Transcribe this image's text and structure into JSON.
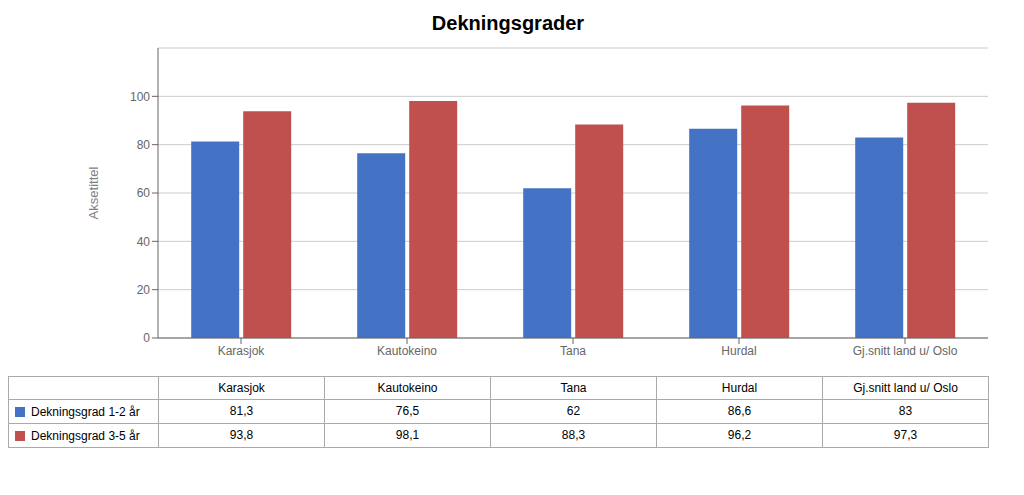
{
  "chart_data": {
    "type": "bar",
    "title": "Dekningsgrader",
    "y_label": "Aksetittel",
    "categories": [
      "Karasjok",
      "Kautokeino",
      "Tana",
      "Hurdal",
      "Gj.snitt land u/ Oslo"
    ],
    "series": [
      {
        "name": "Dekningsgrad 1-2 år",
        "color": "#4472C4",
        "values": [
          81.3,
          76.5,
          62,
          86.6,
          83
        ],
        "value_labels": [
          "81,3",
          "76,5",
          "62",
          "86,6",
          "83"
        ]
      },
      {
        "name": "Dekningsgrad 3-5 år",
        "color": "#C0504D",
        "values": [
          93.8,
          98.1,
          88.3,
          96.2,
          97.3
        ],
        "value_labels": [
          "93,8",
          "98,1",
          "88,3",
          "96,2",
          "97,3"
        ]
      }
    ],
    "ylim": [
      0,
      120
    ],
    "yticks": [
      0,
      20,
      40,
      60,
      80,
      100
    ],
    "grid": true
  }
}
